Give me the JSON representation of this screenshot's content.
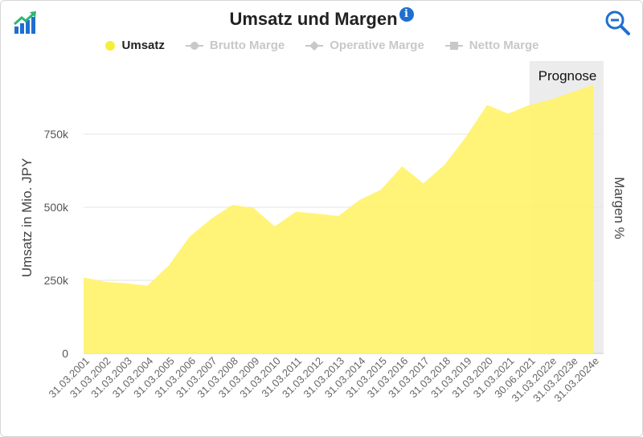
{
  "header": {
    "title": "Umsatz und Margen",
    "info_glyph": "i"
  },
  "legend": [
    {
      "label": "Umsatz",
      "active": true,
      "marker": "circle",
      "color": "#f7ee3b"
    },
    {
      "label": "Brutto Marge",
      "active": false,
      "marker": "circle-line",
      "color": "#c8c8c8"
    },
    {
      "label": "Operative Marge",
      "active": false,
      "marker": "diamond-line",
      "color": "#c8c8c8"
    },
    {
      "label": "Netto Marge",
      "active": false,
      "marker": "square-line",
      "color": "#c8c8c8"
    }
  ],
  "icons": {
    "logo": "trend-up-bars-icon",
    "zoom": "zoom-out-icon"
  },
  "colors": {
    "area_fill": "#fff36b",
    "forecast_band": "#ececec",
    "accent_blue": "#1f6fd1"
  },
  "chart_data": {
    "type": "area",
    "title": "Umsatz und Margen",
    "ylabel": "Umsatz in Mio. JPY",
    "y2label": "Margen %",
    "ylim": [
      0,
      1000000
    ],
    "yticks": [
      0,
      250000,
      500000,
      750000
    ],
    "ytick_labels": [
      "0",
      "250k",
      "500k",
      "750k"
    ],
    "grid": true,
    "forecast_label": "Prognose",
    "forecast_start_index": 21,
    "categories": [
      "31.03.2001",
      "31.03.2002",
      "31.03.2003",
      "31.03.2004",
      "31.03.2005",
      "31.03.2006",
      "31.03.2007",
      "31.03.2008",
      "31.03.2009",
      "31.03.2010",
      "31.03.2011",
      "31.03.2012",
      "31.03.2013",
      "31.03.2014",
      "31.03.2015",
      "31.03.2016",
      "31.03.2017",
      "31.03.2018",
      "31.03.2019",
      "31.03.2020",
      "31.03.2021",
      "30.06.2021",
      "31.03.2022e",
      "31.03.2023e",
      "31.03.2024e"
    ],
    "series": [
      {
        "name": "Umsatz",
        "values": [
          260000,
          245000,
          240000,
          232000,
          300000,
          400000,
          460000,
          508000,
          498000,
          435000,
          485000,
          478000,
          470000,
          525000,
          560000,
          640000,
          582000,
          645000,
          740000,
          850000,
          820000,
          850000,
          868000,
          893000,
          918000
        ]
      }
    ]
  }
}
